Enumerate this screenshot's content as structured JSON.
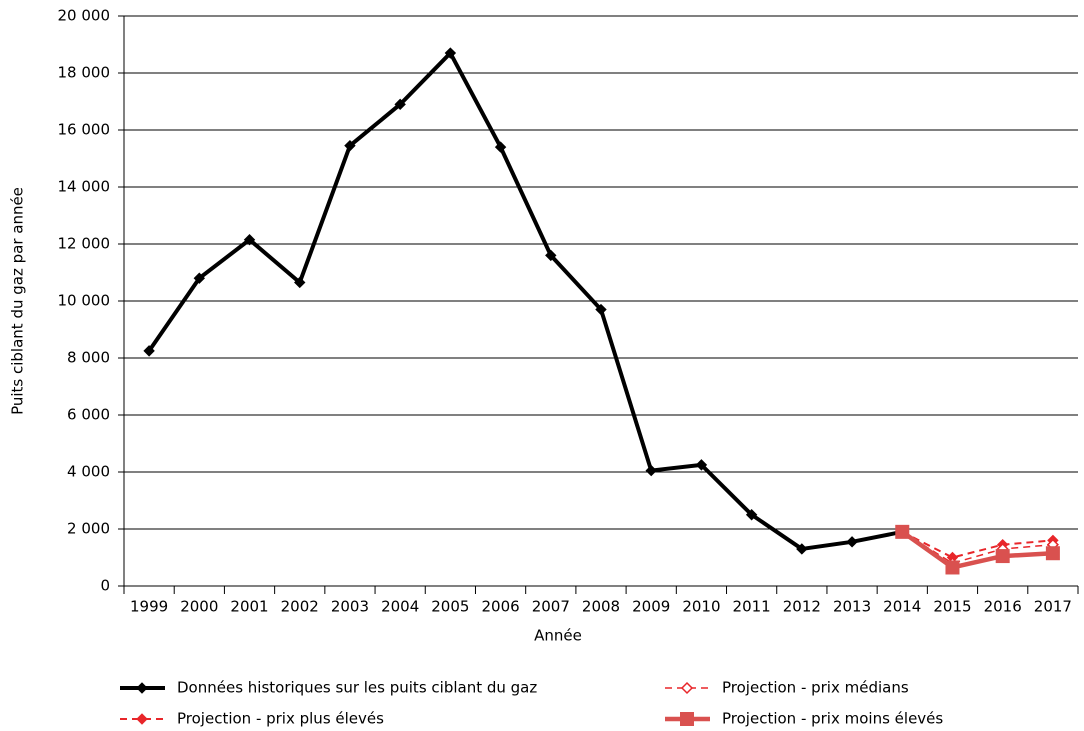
{
  "chart_data": {
    "type": "line",
    "xlabel": "Année",
    "ylabel": "Puits ciblant du gaz par année",
    "categories": [
      "1999",
      "2000",
      "2001",
      "2002",
      "2003",
      "2004",
      "2005",
      "2006",
      "2007",
      "2008",
      "2009",
      "2010",
      "2011",
      "2012",
      "2013",
      "2014",
      "2015",
      "2016",
      "2017"
    ],
    "ylim": [
      0,
      20000
    ],
    "yticks": [
      0,
      {
        "value": 2000,
        "label": "2 000"
      },
      {
        "value": 4000,
        "label": "4 000"
      },
      {
        "value": 6000,
        "label": "6 000"
      },
      {
        "value": 8000,
        "label": "8 000"
      },
      {
        "value": 10000,
        "label": "10 000"
      },
      {
        "value": 12000,
        "label": "12 000"
      },
      {
        "value": 14000,
        "label": "14 000"
      },
      {
        "value": 16000,
        "label": "16 000"
      },
      {
        "value": 18000,
        "label": "18 000"
      },
      {
        "value": 20000,
        "label": "20 000"
      }
    ],
    "grid": true,
    "legend": "bottom",
    "series": [
      {
        "name": "Données historiques sur les puits ciblant du gaz",
        "color": "#000000",
        "line_width": 4,
        "dash": false,
        "marker": "diamond",
        "values": [
          8250,
          10800,
          12150,
          10650,
          15450,
          16900,
          18700,
          15400,
          11600,
          9700,
          4050,
          4250,
          2500,
          1300,
          1550,
          1900,
          null,
          null,
          null
        ]
      },
      {
        "name": "Projection - prix plus élevés",
        "color": "#e8262a",
        "line_width": 2,
        "dash": true,
        "marker": "diamond",
        "values": [
          null,
          null,
          null,
          null,
          null,
          null,
          null,
          null,
          null,
          null,
          null,
          null,
          null,
          null,
          null,
          1900,
          1000,
          1450,
          1600
        ]
      },
      {
        "name": "Projection - prix médians",
        "color": "#e8262a",
        "line_width": 1.5,
        "dash": true,
        "marker": "diamond-open",
        "values": [
          null,
          null,
          null,
          null,
          null,
          null,
          null,
          null,
          null,
          null,
          null,
          null,
          null,
          null,
          null,
          1900,
          800,
          1300,
          1450
        ]
      },
      {
        "name": "Projection - prix moins élevés",
        "color": "#d9514f",
        "line_width": 4.5,
        "dash": false,
        "marker": "square",
        "values": [
          null,
          null,
          null,
          null,
          null,
          null,
          null,
          null,
          null,
          null,
          null,
          null,
          null,
          null,
          null,
          1900,
          650,
          1050,
          1150
        ]
      }
    ]
  }
}
